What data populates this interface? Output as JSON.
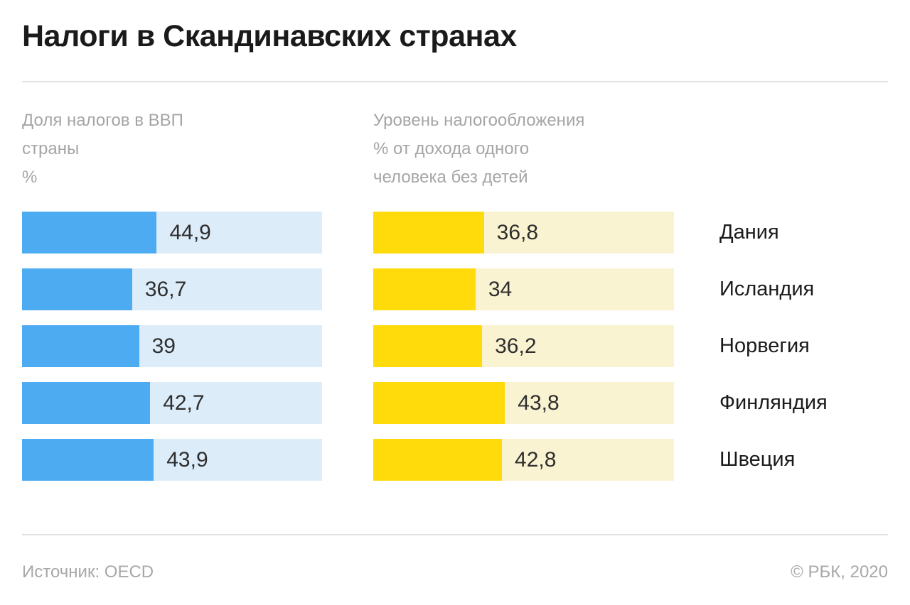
{
  "title": "Налоги в Скандинавских странах",
  "subtitles": {
    "left": [
      "Доля налогов в ВВП",
      "страны",
      "%"
    ],
    "right": [
      "Уровень налогообложения",
      "% от дохода одного",
      "человека без детей"
    ]
  },
  "chart_data": {
    "type": "bar",
    "orientation": "horizontal",
    "categories": [
      "Дания",
      "Исландия",
      "Норвегия",
      "Финляндия",
      "Швеция"
    ],
    "series": [
      {
        "name": "Доля налогов в ВВП страны, %",
        "values": [
          44.9,
          36.7,
          39,
          42.7,
          43.9
        ],
        "labels": [
          "44,9",
          "36,7",
          "39",
          "42,7",
          "43,9"
        ],
        "bar_color": "#4dabf2",
        "track_color": "#dcecf9"
      },
      {
        "name": "Уровень налогообложения, % от дохода одного человека без детей",
        "values": [
          36.8,
          34,
          36.2,
          43.8,
          42.8
        ],
        "labels": [
          "36,8",
          "34",
          "36,2",
          "43,8",
          "42,8"
        ],
        "bar_color": "#ffdb0c",
        "track_color": "#faf3d1"
      }
    ],
    "value_axis_max": 100,
    "grid": false,
    "legend": false
  },
  "footer": {
    "source": "Источник: OECD",
    "copyright": "© РБК, 2020"
  }
}
